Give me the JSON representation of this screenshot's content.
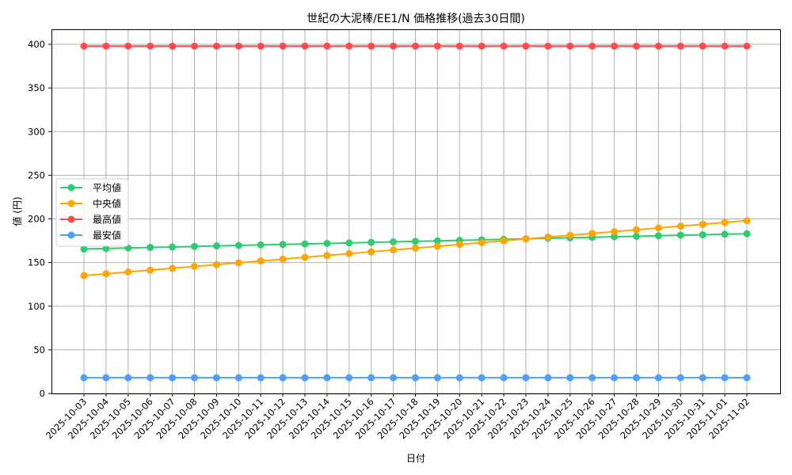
{
  "chart_data": {
    "type": "line",
    "title": "世紀の大泥棒/EE1/N 価格推移(過去30日間)",
    "xlabel": "日付",
    "ylabel": "値 (円)",
    "ylim": [
      0,
      418
    ],
    "yticks": [
      0,
      50,
      100,
      150,
      200,
      250,
      300,
      350,
      400
    ],
    "grid": true,
    "legend_position": "center left",
    "x": [
      "2025-10-03",
      "2025-10-04",
      "2025-10-05",
      "2025-10-06",
      "2025-10-07",
      "2025-10-08",
      "2025-10-09",
      "2025-10-10",
      "2025-10-11",
      "2025-10-12",
      "2025-10-13",
      "2025-10-14",
      "2025-10-15",
      "2025-10-16",
      "2025-10-17",
      "2025-10-18",
      "2025-10-19",
      "2025-10-20",
      "2025-10-21",
      "2025-10-22",
      "2025-10-23",
      "2025-10-24",
      "2025-10-25",
      "2025-10-26",
      "2025-10-27",
      "2025-10-28",
      "2025-10-29",
      "2025-10-30",
      "2025-10-31",
      "2025-11-01",
      "2025-11-02"
    ],
    "series": [
      {
        "name": "平均値",
        "color": "#2ecc71",
        "values": [
          165.5,
          166.1,
          166.7,
          167.3,
          167.8,
          168.4,
          169.0,
          169.6,
          170.2,
          170.8,
          171.3,
          171.9,
          172.5,
          173.1,
          173.7,
          174.3,
          174.8,
          175.4,
          176.0,
          176.6,
          177.2,
          177.8,
          178.3,
          178.9,
          179.5,
          180.1,
          180.7,
          181.3,
          181.8,
          182.4,
          183.0
        ]
      },
      {
        "name": "中央値",
        "color": "#ffa500",
        "values": [
          135.0,
          137.1,
          139.2,
          141.3,
          143.4,
          145.5,
          147.6,
          149.7,
          151.8,
          153.9,
          156.0,
          158.1,
          160.2,
          162.3,
          164.4,
          166.5,
          168.6,
          170.7,
          172.8,
          174.9,
          177.0,
          179.1,
          181.2,
          183.3,
          185.4,
          187.5,
          189.6,
          191.7,
          193.8,
          195.9,
          198.0
        ]
      },
      {
        "name": "最高値",
        "color": "#ff4d4d",
        "values": [
          398,
          398,
          398,
          398,
          398,
          398,
          398,
          398,
          398,
          398,
          398,
          398,
          398,
          398,
          398,
          398,
          398,
          398,
          398,
          398,
          398,
          398,
          398,
          398,
          398,
          398,
          398,
          398,
          398,
          398,
          398
        ]
      },
      {
        "name": "最安値",
        "color": "#4d9fff",
        "values": [
          18,
          18,
          18,
          18,
          18,
          18,
          18,
          18,
          18,
          18,
          18,
          18,
          18,
          18,
          18,
          18,
          18,
          18,
          18,
          18,
          18,
          18,
          18,
          18,
          18,
          18,
          18,
          18,
          18,
          18,
          18
        ]
      }
    ]
  }
}
